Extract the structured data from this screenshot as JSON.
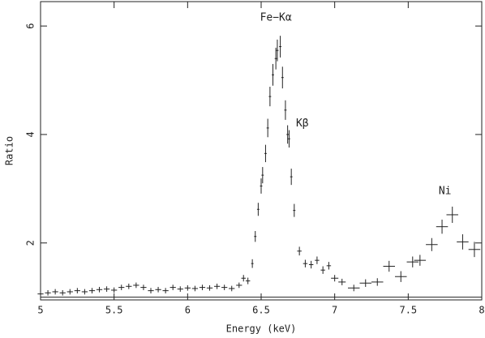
{
  "chart_data": {
    "type": "errorbar",
    "x_label": "Energy (keV)",
    "y_label": "Ratio",
    "xlim": [
      5,
      8
    ],
    "ylim": [
      0.95,
      6.45
    ],
    "xticks": [
      5,
      5.5,
      6,
      6.5,
      7,
      7.5,
      8
    ],
    "yticks": [
      2,
      4,
      6
    ],
    "reference_line": 1,
    "color": "#222222",
    "annotations": [
      {
        "text": "Fe−Kα",
        "x": 6.6,
        "y": 6.15
      },
      {
        "text": "Kβ",
        "x": 6.78,
        "y": 4.2
      },
      {
        "text": "Ni",
        "x": 7.75,
        "y": 2.95
      }
    ],
    "x": [
      5.0,
      5.05,
      5.1,
      5.15,
      5.2,
      5.25,
      5.3,
      5.35,
      5.4,
      5.45,
      5.5,
      5.55,
      5.6,
      5.65,
      5.7,
      5.75,
      5.8,
      5.85,
      5.9,
      5.95,
      6.0,
      6.05,
      6.1,
      6.15,
      6.2,
      6.25,
      6.3,
      6.35,
      6.38,
      6.41,
      6.44,
      6.46,
      6.48,
      6.5,
      6.51,
      6.53,
      6.545,
      6.56,
      6.58,
      6.6,
      6.61,
      6.63,
      6.645,
      6.665,
      6.68,
      6.69,
      6.705,
      6.725,
      6.76,
      6.8,
      6.84,
      6.88,
      6.92,
      6.96,
      7.0,
      7.05,
      7.13,
      7.21,
      7.29,
      7.37,
      7.45,
      7.53,
      7.58,
      7.66,
      7.73,
      7.8,
      7.87,
      7.95
    ],
    "values": [
      1.06,
      1.08,
      1.1,
      1.08,
      1.1,
      1.12,
      1.1,
      1.12,
      1.14,
      1.15,
      1.13,
      1.18,
      1.2,
      1.22,
      1.18,
      1.12,
      1.14,
      1.12,
      1.18,
      1.15,
      1.17,
      1.16,
      1.18,
      1.17,
      1.2,
      1.18,
      1.16,
      1.22,
      1.35,
      1.3,
      1.62,
      2.12,
      2.62,
      3.05,
      3.25,
      3.65,
      4.12,
      4.7,
      5.1,
      5.4,
      5.55,
      5.62,
      5.05,
      4.45,
      4.0,
      3.92,
      3.22,
      2.6,
      1.85,
      1.62,
      1.6,
      1.68,
      1.5,
      1.58,
      1.35,
      1.28,
      1.17,
      1.26,
      1.28,
      1.57,
      1.38,
      1.65,
      1.68,
      1.97,
      2.3,
      2.52,
      2.02,
      1.88
    ],
    "xerr": [
      0.02,
      0.02,
      0.02,
      0.02,
      0.02,
      0.02,
      0.02,
      0.02,
      0.02,
      0.02,
      0.02,
      0.02,
      0.02,
      0.02,
      0.02,
      0.02,
      0.02,
      0.02,
      0.02,
      0.02,
      0.02,
      0.02,
      0.02,
      0.02,
      0.02,
      0.02,
      0.02,
      0.02,
      0.015,
      0.015,
      0.008,
      0.008,
      0.008,
      0.008,
      0.008,
      0.008,
      0.008,
      0.008,
      0.008,
      0.008,
      0.008,
      0.008,
      0.008,
      0.008,
      0.008,
      0.008,
      0.008,
      0.008,
      0.015,
      0.015,
      0.015,
      0.015,
      0.015,
      0.015,
      0.025,
      0.025,
      0.04,
      0.04,
      0.04,
      0.04,
      0.04,
      0.04,
      0.04,
      0.04,
      0.04,
      0.04,
      0.04,
      0.04
    ],
    "yerr": [
      0.05,
      0.05,
      0.05,
      0.05,
      0.05,
      0.05,
      0.05,
      0.05,
      0.05,
      0.05,
      0.05,
      0.05,
      0.05,
      0.05,
      0.05,
      0.05,
      0.05,
      0.05,
      0.05,
      0.05,
      0.05,
      0.05,
      0.05,
      0.05,
      0.05,
      0.05,
      0.05,
      0.05,
      0.06,
      0.06,
      0.08,
      0.1,
      0.12,
      0.14,
      0.15,
      0.16,
      0.17,
      0.18,
      0.2,
      0.2,
      0.2,
      0.2,
      0.2,
      0.18,
      0.17,
      0.16,
      0.15,
      0.12,
      0.08,
      0.07,
      0.07,
      0.07,
      0.07,
      0.07,
      0.06,
      0.06,
      0.06,
      0.07,
      0.07,
      0.1,
      0.1,
      0.1,
      0.1,
      0.12,
      0.13,
      0.15,
      0.14,
      0.14
    ]
  }
}
